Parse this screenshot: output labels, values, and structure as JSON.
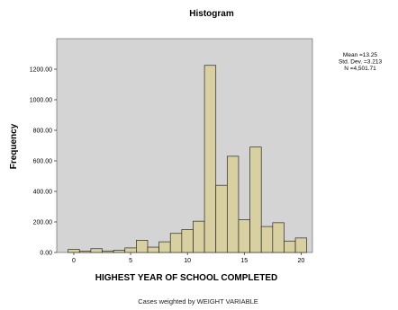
{
  "chart_data": {
    "type": "bar",
    "title": "Histogram",
    "xlabel": "HIGHEST YEAR OF SCHOOL COMPLETED",
    "ylabel": "Frequency",
    "ylim": [
      0,
      1400
    ],
    "xlim": [
      -1.5,
      21
    ],
    "bin_width": 1,
    "bins": [
      {
        "x": 0,
        "value": 20
      },
      {
        "x": 1,
        "value": 8
      },
      {
        "x": 2,
        "value": 25
      },
      {
        "x": 3,
        "value": 10
      },
      {
        "x": 4,
        "value": 15
      },
      {
        "x": 5,
        "value": 30
      },
      {
        "x": 6,
        "value": 80
      },
      {
        "x": 7,
        "value": 35
      },
      {
        "x": 8,
        "value": 70
      },
      {
        "x": 9,
        "value": 125
      },
      {
        "x": 10,
        "value": 150
      },
      {
        "x": 11,
        "value": 205
      },
      {
        "x": 12,
        "value": 1225
      },
      {
        "x": 13,
        "value": 440
      },
      {
        "x": 14,
        "value": 630
      },
      {
        "x": 15,
        "value": 215
      },
      {
        "x": 16,
        "value": 690
      },
      {
        "x": 17,
        "value": 170
      },
      {
        "x": 18,
        "value": 195
      },
      {
        "x": 19,
        "value": 75
      },
      {
        "x": 20,
        "value": 95
      }
    ],
    "y_ticks": [
      "0.00",
      "200.00",
      "400.00",
      "600.00",
      "800.00",
      "1000.00",
      "1200.00"
    ],
    "y_tick_values": [
      0,
      200,
      400,
      600,
      800,
      1000,
      1200
    ],
    "x_ticks": [
      "0",
      "5",
      "10",
      "15",
      "20"
    ],
    "x_tick_values": [
      0,
      5,
      10,
      15,
      20
    ],
    "stats": [
      "Mean =13.25",
      "Std. Dev. =3.213",
      "N =4,501.71"
    ],
    "footnote": "Cases weighted by WEIGHT VARIABLE",
    "bar_fill": "#d8d0a0",
    "bar_stroke": "#2a2a2a",
    "plot_background": "#d4d4d4"
  }
}
